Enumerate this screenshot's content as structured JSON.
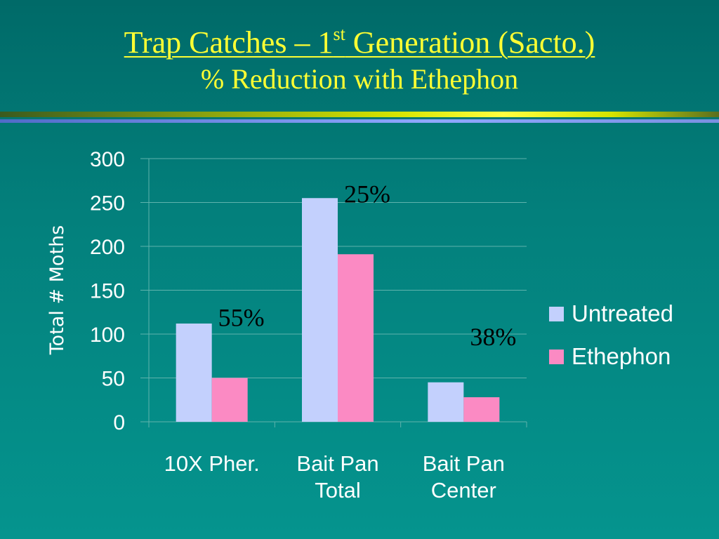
{
  "slide": {
    "title_main": "Trap Catches – 1",
    "title_sup": "st",
    "title_rest": " Generation (Sacto.)",
    "subtitle": "% Reduction with Ethephon"
  },
  "chart_data": {
    "type": "bar",
    "categories": [
      [
        "10X Pher."
      ],
      [
        "Bait Pan",
        "Total"
      ],
      [
        "Bait Pan",
        "Center"
      ]
    ],
    "series": [
      {
        "name": "Untreated",
        "color": "#c3d0fd",
        "values": [
          112,
          255,
          45
        ]
      },
      {
        "name": "Ethephon",
        "color": "#fb8ac3",
        "values": [
          50,
          191,
          28
        ]
      }
    ],
    "annotations": [
      "55%",
      "25%",
      "38%"
    ],
    "ylabel": "Total # Moths",
    "ylim": [
      0,
      300
    ],
    "yticks": [
      0,
      50,
      100,
      150,
      200,
      250,
      300
    ],
    "grid": true,
    "legend_position": "right"
  }
}
